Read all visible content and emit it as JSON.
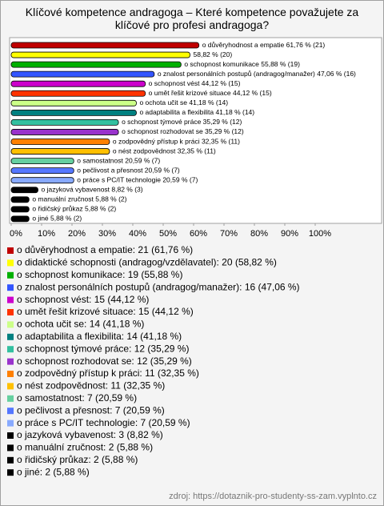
{
  "chart_data": {
    "type": "bar",
    "orientation": "horizontal",
    "title": "Klíčové kompetence andragoga – Které kompetence považujete za klíčové pro profesi andragoga?",
    "values": [
      61.76,
      58.82,
      55.88,
      47.06,
      44.12,
      44.12,
      41.18,
      41.18,
      35.29,
      35.29,
      32.35,
      32.35,
      20.59,
      20.59,
      20.59,
      8.82,
      5.88,
      5.88,
      5.88
    ],
    "value_labels": [
      "o důvěryhodnost a empatie 61,76 % (21)",
      "58,82 % (20)",
      "o schopnost komunikace 55,88 % (19)",
      "o znalost personálních postupů (andragog/manažer) 47,06 % (16)",
      "o schopnost vést 44,12 % (15)",
      "o umět řešit krizové situace 44,12 % (15)",
      "o ochota učit se 41,18 % (14)",
      "o adaptabilita a flexibilita 41,18 % (14)",
      "o schopnost týmové práce 35,29 % (12)",
      "o schopnost rozhodovat se 35,29 % (12)",
      "o zodpovědný přístup k práci 32,35 % (11)",
      "o nést zodpovědnost 32,35 % (11)",
      "o samostatnost 20,59 % (7)",
      "o pečlivost a přesnost 20,59 % (7)",
      "o práce s PC/IT technologie 20,59 % (7)",
      "o jazyková vybavenost 8,82 % (3)",
      "o manuální zručnost 5,88 % (2)",
      "o řidičský průkaz 5,88 % (2)",
      "o jiné 5,88 % (2)"
    ],
    "colors": [
      "#c00000",
      "#ffff00",
      "#00b000",
      "#3355ff",
      "#cc00cc",
      "#ff3300",
      "#ccff88",
      "#008080",
      "#33c0a0",
      "#9933cc",
      "#ff8000",
      "#ffc000",
      "#66d0a0",
      "#5577ff",
      "#88aaff",
      "#000000",
      "#000000",
      "#000000",
      "#000000"
    ],
    "legend": [
      "o důvěryhodnost a empatie: 21 (61,76 %)",
      "o didaktické schopnosti (andragog/vzdělavatel): 20 (58,82 %)",
      "o schopnost komunikace: 19 (55,88 %)",
      "o znalost personálních postupů (andragog/manažer): 16 (47,06 %)",
      "o schopnost vést: 15 (44,12 %)",
      "o umět řešit krizové situace: 15 (44,12 %)",
      "o ochota učit se: 14 (41,18 %)",
      "o adaptabilita a flexibilita: 14 (41,18 %)",
      "o schopnost týmové práce: 12 (35,29 %)",
      "o schopnost rozhodovat se: 12 (35,29 %)",
      "o zodpovědný přístup k práci: 11 (32,35 %)",
      "o nést zodpovědnost: 11 (32,35 %)",
      "o samostatnost: 7 (20,59 %)",
      "o pečlivost a přesnost: 7 (20,59 %)",
      "o práce s PC/IT technologie: 7 (20,59 %)",
      "o jazyková vybavenost: 3 (8,82 %)",
      "o manuální zručnost: 2 (5,88 %)",
      "o řidičský průkaz: 2 (5,88 %)",
      "o jiné: 2 (5,88 %)"
    ],
    "xlim": [
      0,
      100
    ],
    "xticks": [
      {
        "value": 0,
        "label": "0%"
      },
      {
        "value": 10,
        "label": "10%"
      },
      {
        "value": 20,
        "label": "20%"
      },
      {
        "value": 30,
        "label": "30%"
      },
      {
        "value": 40,
        "label": "40%"
      },
      {
        "value": 50,
        "label": "50%"
      },
      {
        "value": 60,
        "label": "60%"
      },
      {
        "value": 70,
        "label": "70%"
      },
      {
        "value": 80,
        "label": "80%"
      },
      {
        "value": 90,
        "label": "90%"
      },
      {
        "value": 100,
        "label": "100%"
      }
    ],
    "source": "zdroj: https://dotaznik-pro-studenty-ss-zam.vyplnto.cz"
  }
}
